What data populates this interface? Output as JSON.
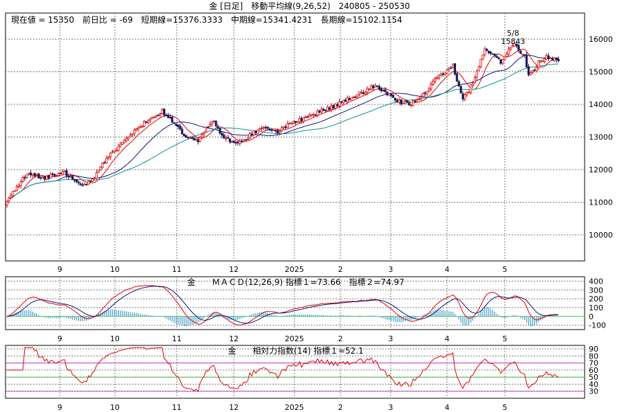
{
  "window_title": "金 [日足]　移動平均線(9,26,52)　240805 - 250530",
  "chart_data": [
    {
      "type": "candlestick",
      "panel": "price",
      "header": "現在値 = 15350　前日比 = -69　短期線=15376.3333　中期線=15341.4231　長期線=15102.1154",
      "annotation": {
        "date": "5/8",
        "value": "15843"
      },
      "ylim": [
        9200,
        16800
      ],
      "yticks": [
        10000,
        11000,
        12000,
        13000,
        14000,
        15000,
        16000
      ],
      "x_range": [
        "240805",
        "250530"
      ],
      "month_labels": [
        "9",
        "10",
        "11",
        "12",
        "2025",
        "2",
        "3",
        "4",
        "5"
      ],
      "close_anchors": [
        [
          0,
          11000
        ],
        [
          5,
          11500
        ],
        [
          10,
          11850
        ],
        [
          20,
          11750
        ],
        [
          28,
          11950
        ],
        [
          36,
          11550
        ],
        [
          42,
          11600
        ],
        [
          48,
          12200
        ],
        [
          54,
          12600
        ],
        [
          60,
          12900
        ],
        [
          66,
          13300
        ],
        [
          72,
          13550
        ],
        [
          78,
          13800
        ],
        [
          84,
          13400
        ],
        [
          90,
          13000
        ],
        [
          96,
          12900
        ],
        [
          100,
          13250
        ],
        [
          104,
          13500
        ],
        [
          108,
          13050
        ],
        [
          112,
          12850
        ],
        [
          118,
          12850
        ],
        [
          124,
          13150
        ],
        [
          130,
          13300
        ],
        [
          136,
          13150
        ],
        [
          142,
          13400
        ],
        [
          148,
          13550
        ],
        [
          154,
          13700
        ],
        [
          160,
          13850
        ],
        [
          166,
          14000
        ],
        [
          172,
          14200
        ],
        [
          178,
          14350
        ],
        [
          184,
          14550
        ],
        [
          190,
          14400
        ],
        [
          196,
          14100
        ],
        [
          202,
          14000
        ],
        [
          208,
          14200
        ],
        [
          214,
          14700
        ],
        [
          220,
          15000
        ],
        [
          224,
          15200
        ],
        [
          226,
          14700
        ],
        [
          229,
          14200
        ],
        [
          232,
          14400
        ],
        [
          236,
          15000
        ],
        [
          240,
          15700
        ],
        [
          244,
          15500
        ],
        [
          248,
          15300
        ],
        [
          252,
          15700
        ],
        [
          255,
          15843
        ],
        [
          258,
          15600
        ],
        [
          260,
          15500
        ],
        [
          262,
          14900
        ],
        [
          265,
          15100
        ],
        [
          268,
          15350
        ],
        [
          271,
          15450
        ],
        [
          274,
          15400
        ],
        [
          277,
          15350
        ]
      ],
      "series": [
        {
          "name": "短期線",
          "period": 9,
          "value_last": 15376.3333,
          "color": "#e00000"
        },
        {
          "name": "中期線",
          "period": 26,
          "value_last": 15341.4231,
          "color": "#101070"
        },
        {
          "name": "長期線",
          "period": 52,
          "value_last": 15102.1154,
          "color": "#0a9090"
        }
      ],
      "colors": {
        "up": "#e00000",
        "down": "#1a1a5a"
      }
    },
    {
      "type": "line",
      "panel": "macd",
      "header": "金　　ＭＡＣＤ(12,26,9) 指標１=73.66　指標２=74.97",
      "ylim": [
        -150,
        450
      ],
      "yticks": [
        -100,
        0,
        100,
        200,
        300,
        400
      ],
      "series": [
        {
          "name": "指標１",
          "value_last": 73.66,
          "color": "#e00000"
        },
        {
          "name": "指標２",
          "value_last": 74.97,
          "color": "#101070"
        }
      ],
      "histogram_color": "#5aa9d0",
      "zero_line_color": "#40c040"
    },
    {
      "type": "line",
      "panel": "rsi",
      "header": "金　　相対力指数(14) 指標１=52.1",
      "ylim": [
        20,
        95
      ],
      "yticks": [
        30,
        40,
        50,
        60,
        70,
        80,
        90
      ],
      "hlines": [
        {
          "y": 30,
          "color": "#c040c0"
        },
        {
          "y": 50,
          "color": "#40c040"
        },
        {
          "y": 70,
          "color": "#c040c0"
        }
      ],
      "series": [
        {
          "name": "指標１",
          "value_last": 52.1,
          "color": "#e00000"
        }
      ]
    }
  ]
}
